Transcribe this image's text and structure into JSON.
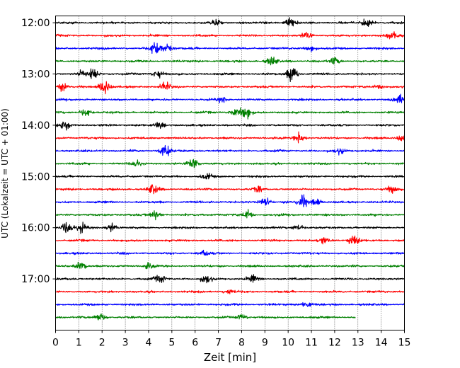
{
  "chart_data": {
    "type": "line",
    "title": "",
    "xlabel": "Zeit  [min]",
    "ylabel": "UTC (Lokalzeit = UTC + 01:00)",
    "xlim": [
      0,
      15
    ],
    "ylim": [
      "18:00",
      "11:52"
    ],
    "x_ticks": [
      0,
      1,
      2,
      3,
      4,
      5,
      6,
      7,
      8,
      9,
      10,
      11,
      12,
      13,
      14,
      15
    ],
    "x_tick_labels": [
      "0",
      "1",
      "2",
      "3",
      "4",
      "5",
      "6",
      "7",
      "8",
      "9",
      "10",
      "11",
      "12",
      "13",
      "14",
      "15"
    ],
    "y_tick_labels": [
      "12:00",
      "13:00",
      "14:00",
      "15:00",
      "16:00",
      "17:00"
    ],
    "grid": "vertical dotted at each minute",
    "color_cycle": [
      "#000000",
      "#ff0000",
      "#0000ff",
      "#008000"
    ],
    "trace_interval_minutes": 15,
    "series": [
      {
        "start": "12:00",
        "color": "#000000",
        "end_min": 15,
        "bursts": [
          [
            10.1,
            1.8
          ],
          [
            13.4,
            1.5
          ],
          [
            6.9,
            1.2
          ]
        ]
      },
      {
        "start": "12:15",
        "color": "#ff0000",
        "end_min": 15,
        "bursts": [
          [
            14.5,
            1.7
          ],
          [
            10.8,
            1.3
          ]
        ]
      },
      {
        "start": "12:30",
        "color": "#0000ff",
        "end_min": 15,
        "bursts": [
          [
            4.3,
            2.4
          ],
          [
            4.8,
            1.6
          ],
          [
            11.0,
            1.1
          ]
        ]
      },
      {
        "start": "12:45",
        "color": "#008000",
        "end_min": 15,
        "bursts": [
          [
            9.3,
            1.5
          ],
          [
            12.0,
            1.2
          ]
        ]
      },
      {
        "start": "13:00",
        "color": "#000000",
        "end_min": 15,
        "bursts": [
          [
            10.2,
            3.2
          ],
          [
            1.6,
            2.2
          ],
          [
            1.1,
            1.4
          ],
          [
            4.4,
            1.3
          ]
        ]
      },
      {
        "start": "13:15",
        "color": "#ff0000",
        "end_min": 15,
        "bursts": [
          [
            2.1,
            3.0
          ],
          [
            0.3,
            1.3
          ],
          [
            4.7,
            1.5
          ],
          [
            14.0,
            1.2
          ]
        ]
      },
      {
        "start": "13:30",
        "color": "#0000ff",
        "end_min": 15,
        "bursts": [
          [
            14.8,
            1.6
          ],
          [
            7.2,
            1.1
          ]
        ]
      },
      {
        "start": "13:45",
        "color": "#008000",
        "end_min": 15,
        "bursts": [
          [
            8.2,
            2.4
          ],
          [
            1.3,
            1.3
          ],
          [
            7.7,
            1.4
          ]
        ]
      },
      {
        "start": "14:00",
        "color": "#000000",
        "end_min": 15,
        "bursts": [
          [
            0.4,
            1.6
          ],
          [
            4.5,
            1.1
          ]
        ]
      },
      {
        "start": "14:15",
        "color": "#ff0000",
        "end_min": 15,
        "bursts": [
          [
            10.5,
            2.0
          ],
          [
            14.9,
            1.3
          ]
        ]
      },
      {
        "start": "14:30",
        "color": "#0000ff",
        "end_min": 15,
        "bursts": [
          [
            4.7,
            2.6
          ],
          [
            12.2,
            1.1
          ]
        ]
      },
      {
        "start": "14:45",
        "color": "#008000",
        "end_min": 15,
        "bursts": [
          [
            5.9,
            2.4
          ],
          [
            3.5,
            1.3
          ]
        ]
      },
      {
        "start": "15:00",
        "color": "#000000",
        "end_min": 15,
        "bursts": [
          [
            6.5,
            1.1
          ]
        ]
      },
      {
        "start": "15:15",
        "color": "#ff0000",
        "end_min": 15,
        "bursts": [
          [
            4.2,
            1.9
          ],
          [
            14.5,
            1.4
          ],
          [
            8.7,
            1.1
          ]
        ]
      },
      {
        "start": "15:30",
        "color": "#0000ff",
        "end_min": 15,
        "bursts": [
          [
            10.6,
            2.5
          ],
          [
            9.0,
            1.8
          ],
          [
            11.2,
            1.2
          ]
        ]
      },
      {
        "start": "15:45",
        "color": "#008000",
        "end_min": 15,
        "bursts": [
          [
            8.3,
            1.4
          ],
          [
            4.3,
            1.3
          ]
        ]
      },
      {
        "start": "16:00",
        "color": "#000000",
        "end_min": 15,
        "bursts": [
          [
            0.5,
            2.4
          ],
          [
            1.1,
            1.6
          ],
          [
            2.4,
            1.7
          ],
          [
            10.4,
            1.3
          ]
        ]
      },
      {
        "start": "16:15",
        "color": "#ff0000",
        "end_min": 15,
        "bursts": [
          [
            12.8,
            1.7
          ],
          [
            11.5,
            1.2
          ]
        ]
      },
      {
        "start": "16:30",
        "color": "#0000ff",
        "end_min": 15,
        "bursts": [
          [
            6.4,
            1.0
          ]
        ]
      },
      {
        "start": "16:45",
        "color": "#008000",
        "end_min": 15,
        "bursts": [
          [
            1.1,
            1.6
          ],
          [
            4.0,
            1.0
          ]
        ]
      },
      {
        "start": "17:00",
        "color": "#000000",
        "end_min": 15,
        "bursts": [
          [
            6.5,
            1.5
          ],
          [
            4.5,
            1.4
          ],
          [
            8.5,
            1.3
          ]
        ]
      },
      {
        "start": "17:15",
        "color": "#ff0000",
        "end_min": 15,
        "bursts": [
          [
            7.5,
            1.0
          ]
        ]
      },
      {
        "start": "17:30",
        "color": "#0000ff",
        "end_min": 15,
        "bursts": [
          [
            10.8,
            1.1
          ]
        ]
      },
      {
        "start": "17:45",
        "color": "#008000",
        "end_min": 12.9,
        "bursts": [
          [
            1.9,
            1.6
          ],
          [
            8.0,
            1.0
          ]
        ]
      }
    ]
  }
}
